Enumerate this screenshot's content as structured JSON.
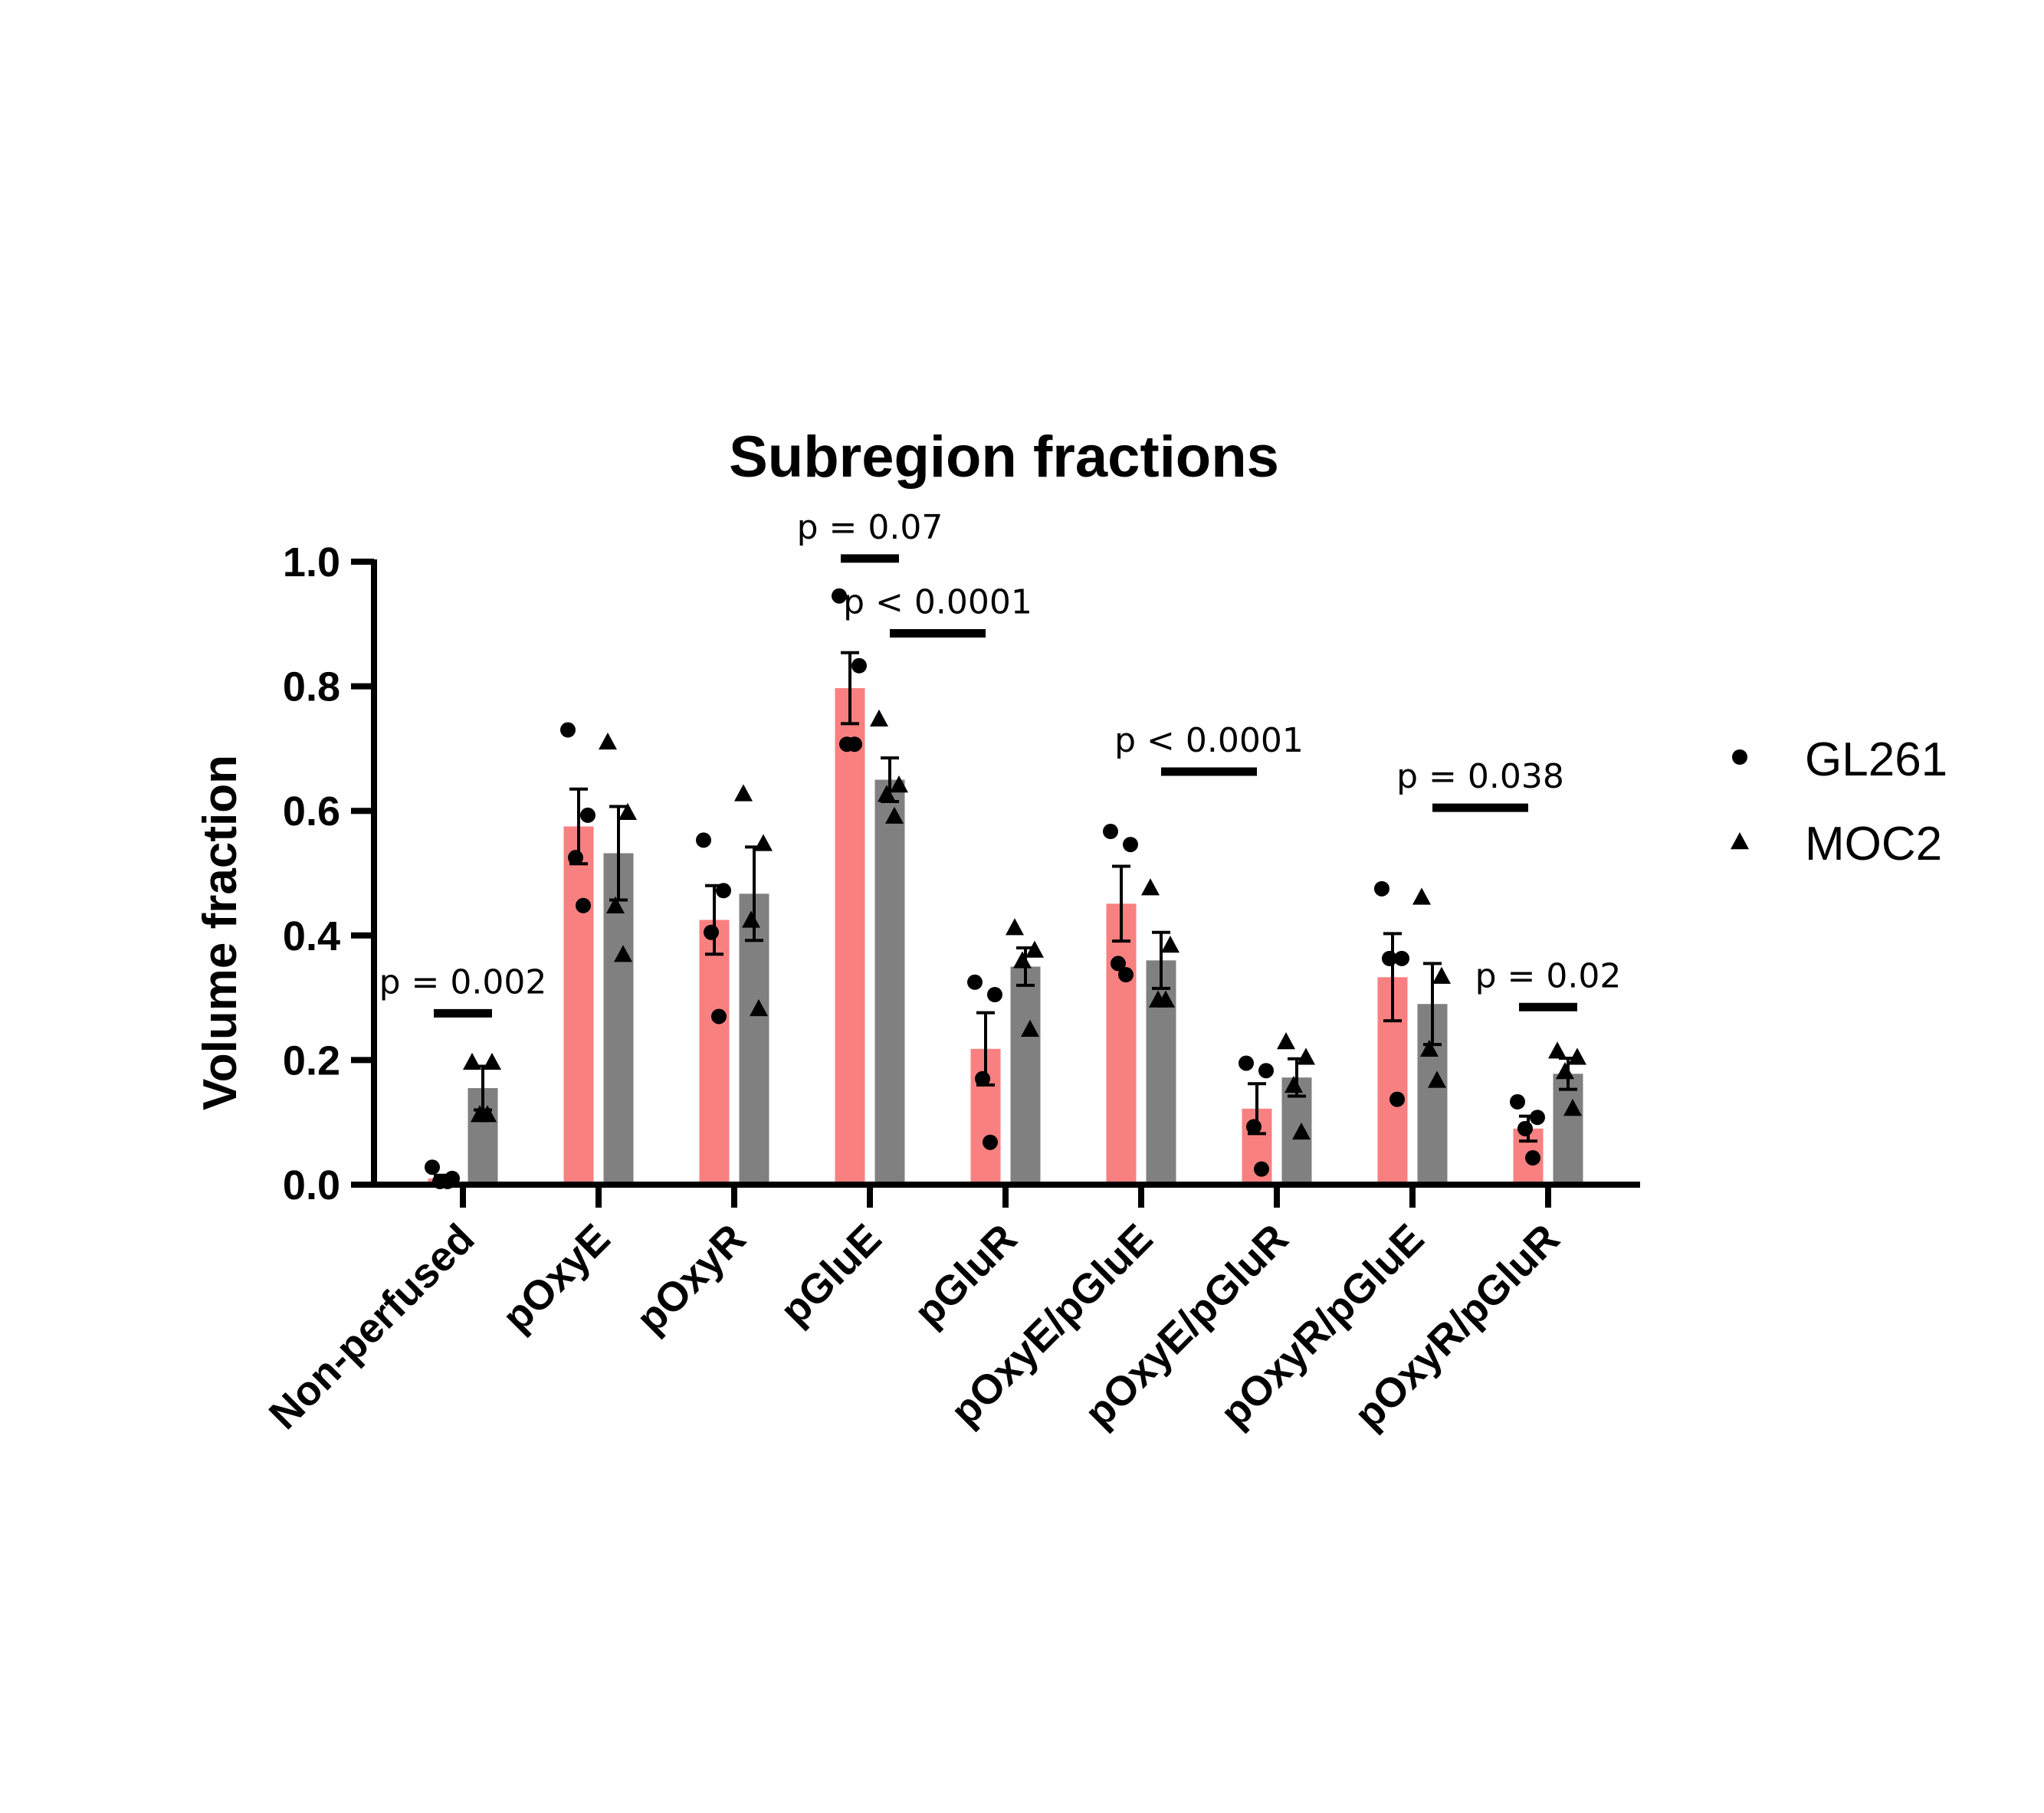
{
  "chart_data": {
    "type": "bar",
    "title": "Subregion fractions",
    "xlabel": "",
    "ylabel": "Volume fraction",
    "ylim": [
      0,
      1.0
    ],
    "yticks": [
      "0.0",
      "0.2",
      "0.4",
      "0.6",
      "0.8",
      "1.0"
    ],
    "grid": false,
    "legend_position": "right",
    "categories": [
      "Non-perfused",
      "pOxyE",
      "pOxyR",
      "pGluE",
      "pGluR",
      "pOxyE/pGluE",
      "pOxyE/pGluR",
      "pOxyR/pGluE",
      "pOxyR/pGluR"
    ],
    "series": [
      {
        "name": "GL261",
        "color": "#F98080",
        "marker": "circle",
        "values": [
          0.01,
          0.575,
          0.425,
          0.797,
          0.218,
          0.451,
          0.122,
          0.333,
          0.09
        ],
        "errors": [
          0.005,
          0.06,
          0.055,
          0.057,
          0.058,
          0.06,
          0.04,
          0.07,
          0.02
        ],
        "points": [
          [
            0.028,
            0.01,
            0.005,
            0.005
          ],
          [
            0.73,
            0.593,
            0.525,
            0.448
          ],
          [
            0.553,
            0.472,
            0.405,
            0.27
          ],
          [
            0.945,
            0.833,
            0.707,
            0.707
          ],
          [
            0.325,
            0.305,
            0.17,
            0.068
          ],
          [
            0.567,
            0.546,
            0.355,
            0.337
          ],
          [
            0.195,
            0.183,
            0.093,
            0.025
          ],
          [
            0.475,
            0.363,
            0.363,
            0.137
          ],
          [
            0.133,
            0.108,
            0.09,
            0.043
          ]
        ]
      },
      {
        "name": "MOC2",
        "color": "#808080",
        "marker": "triangle",
        "values": [
          0.155,
          0.532,
          0.467,
          0.65,
          0.35,
          0.36,
          0.172,
          0.29,
          0.178
        ],
        "errors": [
          0.035,
          0.075,
          0.075,
          0.035,
          0.03,
          0.045,
          0.03,
          0.065,
          0.025
        ],
        "points": [
          [
            0.197,
            0.197,
            0.113,
            0.113
          ],
          [
            0.711,
            0.598,
            0.448,
            0.37
          ],
          [
            0.628,
            0.548,
            0.425,
            0.283
          ],
          [
            0.748,
            0.642,
            0.627,
            0.592
          ],
          [
            0.413,
            0.377,
            0.36,
            0.25
          ],
          [
            0.477,
            0.385,
            0.297,
            0.297
          ],
          [
            0.23,
            0.205,
            0.16,
            0.085
          ],
          [
            0.462,
            0.335,
            0.218,
            0.168
          ],
          [
            0.215,
            0.205,
            0.182,
            0.123
          ]
        ]
      }
    ],
    "annotations": [
      {
        "text": "p = 0.002",
        "from": 0,
        "to": 0,
        "y": 0.275
      },
      {
        "text": "p = 0.07",
        "from": 3,
        "to": 3,
        "y": 1.005
      },
      {
        "text": "p < 0.0001",
        "from": 3,
        "to": 4,
        "y": 0.885
      },
      {
        "text": "p < 0.0001",
        "from": 5,
        "to": 6,
        "y": 0.663
      },
      {
        "text": "p = 0.038",
        "from": 7,
        "to": 8,
        "y": 0.605
      },
      {
        "text": "p = 0.02",
        "from": 8,
        "to": 8,
        "y": 0.285
      }
    ]
  }
}
